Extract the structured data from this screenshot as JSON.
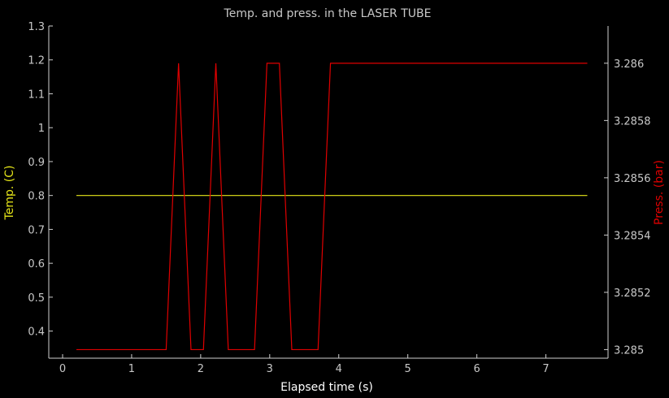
{
  "chart_data": {
    "type": "line",
    "title": "Temp. and press. in the LASER TUBE",
    "xlabel": "Elapsed time (s)",
    "y_left_label": "Temp. (C)",
    "y_right_label": "Press. (bar)",
    "xlim": [
      -0.2,
      7.9
    ],
    "y_left_lim": [
      0.32,
      1.3
    ],
    "y_right_lim": [
      3.28497,
      3.28613
    ],
    "x_ticks": [
      0,
      1,
      2,
      3,
      4,
      5,
      6,
      7
    ],
    "x_tick_labels": [
      "0",
      "1",
      "2",
      "3",
      "4",
      "5",
      "6",
      "7"
    ],
    "y_left_ticks": [
      0.4,
      0.5,
      0.6,
      0.7,
      0.8,
      0.9,
      1.0,
      1.1,
      1.2,
      1.3
    ],
    "y_left_tick_labels": [
      "0.4",
      "0.5",
      "0.6",
      "0.7",
      "0.8",
      "0.9",
      "1",
      "1.1",
      "1.2",
      "1.3"
    ],
    "y_right_ticks": [
      3.285,
      3.2852,
      3.2854,
      3.2856,
      3.2858,
      3.286
    ],
    "y_right_tick_labels": [
      "3.285",
      "3.2852",
      "3.2854",
      "3.2856",
      "3.2858",
      "3.286"
    ],
    "grid": false,
    "series": [
      {
        "axis": "left",
        "color": "#e6e619",
        "x": [
          0.2,
          7.6
        ],
        "y": [
          0.8,
          0.8
        ]
      },
      {
        "axis": "right",
        "color": "#e00000",
        "x": [
          0.2,
          1.5,
          1.68,
          1.86,
          2.04,
          2.22,
          2.4,
          2.78,
          2.96,
          3.14,
          3.32,
          3.7,
          3.88,
          7.6
        ],
        "y": [
          3.285,
          3.285,
          3.286,
          3.285,
          3.285,
          3.286,
          3.285,
          3.285,
          3.286,
          3.286,
          3.285,
          3.285,
          3.286,
          3.286
        ]
      }
    ]
  }
}
